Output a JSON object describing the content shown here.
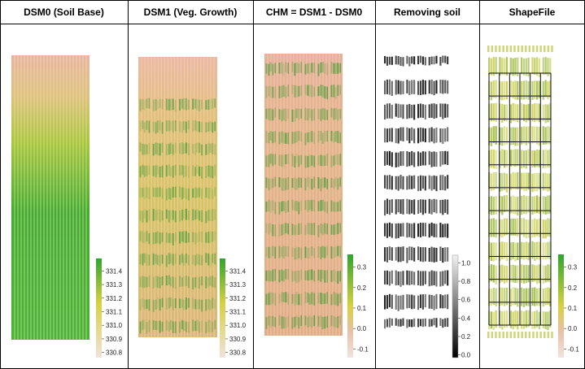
{
  "panels": [
    {
      "title": "DSM0 (Soil Base)",
      "icon": "soil-elevation-raster",
      "legend": {
        "type": "elevation",
        "ticks": [
          "331.4",
          "331.3",
          "331.2",
          "331.1",
          "331.0",
          "330.9",
          "330.8"
        ]
      }
    },
    {
      "title": "DSM1 (Veg. Growth)",
      "icon": "vegetation-elevation-raster",
      "legend": {
        "type": "elevation",
        "ticks": [
          "331.4",
          "331.3",
          "331.2",
          "331.1",
          "331.0",
          "330.9",
          "330.8"
        ]
      }
    },
    {
      "title": "CHM = DSM1 - DSM0",
      "icon": "canopy-height-raster",
      "legend": {
        "type": "height",
        "ticks": [
          "0.3",
          "0.2",
          "0.1",
          "0.0",
          "-0.1"
        ]
      }
    },
    {
      "title": "Removing soil",
      "icon": "soil-mask-raster",
      "legend": {
        "type": "grayscale",
        "ticks": [
          "1.0",
          "0.8",
          "0.6",
          "0.4",
          "0.2",
          "0.0"
        ]
      }
    },
    {
      "title": "ShapeFile",
      "icon": "plot-grid-shapefile",
      "legend": {
        "type": "height",
        "ticks": [
          "0.3",
          "0.2",
          "0.1",
          "0.0",
          "-0.1"
        ]
      }
    }
  ],
  "colors": {
    "soil": "#e9b5a0",
    "mid": "#d8d040",
    "veg": "#2ea52e",
    "mask": "#111111",
    "grid": "#111111"
  }
}
